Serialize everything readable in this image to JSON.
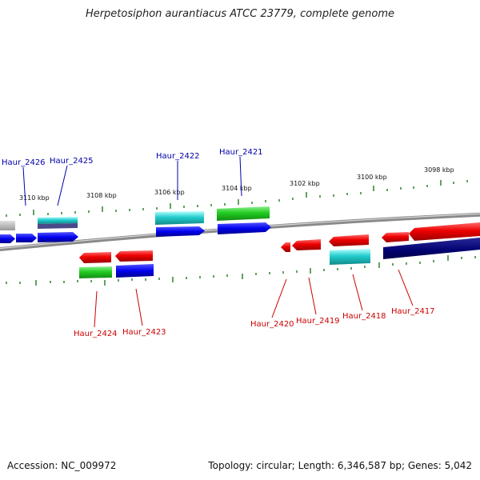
{
  "title": "Herpetosiphon aurantiacus ATCC 23779, complete genome",
  "footer": {
    "accession": "Accession: NC_009972",
    "topology": "Topology: circular; Length: 6,346,587 bp; Genes: 5,042"
  },
  "colors": {
    "label_top": "#0000aa",
    "label_bottom": "#cc0000",
    "ticks": "#1f7a1f",
    "backbone": "#8a8a8a"
  },
  "kbp_labels": [
    "3110 kbp",
    "3108 kbp",
    "3106 kbp",
    "3104 kbp",
    "3102 kbp",
    "3100 kbp",
    "3098 kbp"
  ],
  "gene_labels_top": [
    "Haur_2426",
    "Haur_2425",
    "Haur_2422",
    "Haur_2421"
  ],
  "gene_labels_bottom": [
    "Haur_2424",
    "Haur_2423",
    "Haur_2420",
    "Haur_2419",
    "Haur_2418",
    "Haur_2417"
  ]
}
